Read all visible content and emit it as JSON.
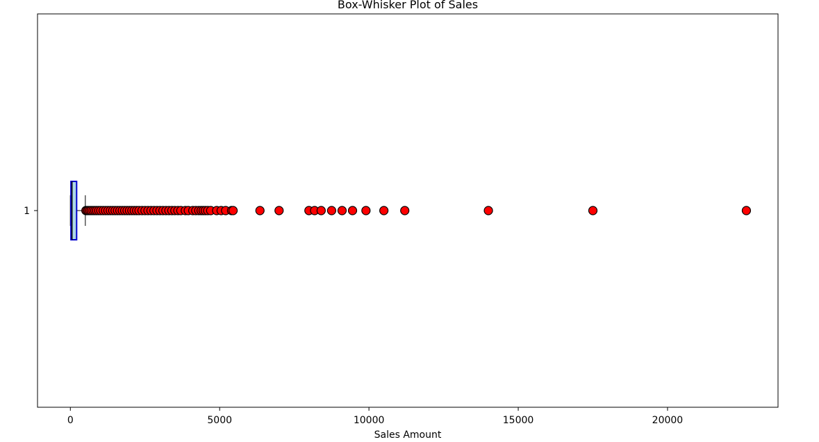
{
  "chart_data": {
    "type": "box",
    "orientation": "horizontal",
    "title": "Box-Whisker Plot of Sales",
    "xlabel": "Sales Amount",
    "ylabel": "",
    "categories": [
      "1"
    ],
    "xlim": [
      -1100,
      23700
    ],
    "x_ticks": [
      0,
      5000,
      10000,
      15000,
      20000
    ],
    "x_tick_labels": [
      "0",
      "5000",
      "10000",
      "15000",
      "20000"
    ],
    "grid": false,
    "box": {
      "label": "1",
      "whisker_low": 2,
      "q1": 20,
      "median": 55,
      "q3": 210,
      "whisker_high": 500,
      "outliers": [
        520,
        560,
        600,
        650,
        700,
        760,
        820,
        880,
        950,
        1020,
        1100,
        1180,
        1260,
        1340,
        1420,
        1500,
        1580,
        1660,
        1740,
        1820,
        1900,
        1980,
        2060,
        2140,
        2220,
        2300,
        2400,
        2500,
        2600,
        2700,
        2800,
        2900,
        3000,
        3100,
        3200,
        3300,
        3400,
        3500,
        3600,
        3700,
        3850,
        3950,
        4100,
        4200,
        4300,
        4380,
        4450,
        4520,
        4600,
        4700,
        4900,
        5050,
        5200,
        5400,
        5450,
        6350,
        6990,
        7990,
        8180,
        8400,
        8750,
        9100,
        9450,
        9900,
        10500,
        11200,
        14000,
        17500,
        22640
      ]
    },
    "colors": {
      "box_fill": "#add8e6",
      "box_edge": "#0000cd",
      "median": "#000000",
      "whisker": "#555555",
      "outlier_fill": "#ff0000",
      "outlier_edge": "#000000"
    }
  }
}
